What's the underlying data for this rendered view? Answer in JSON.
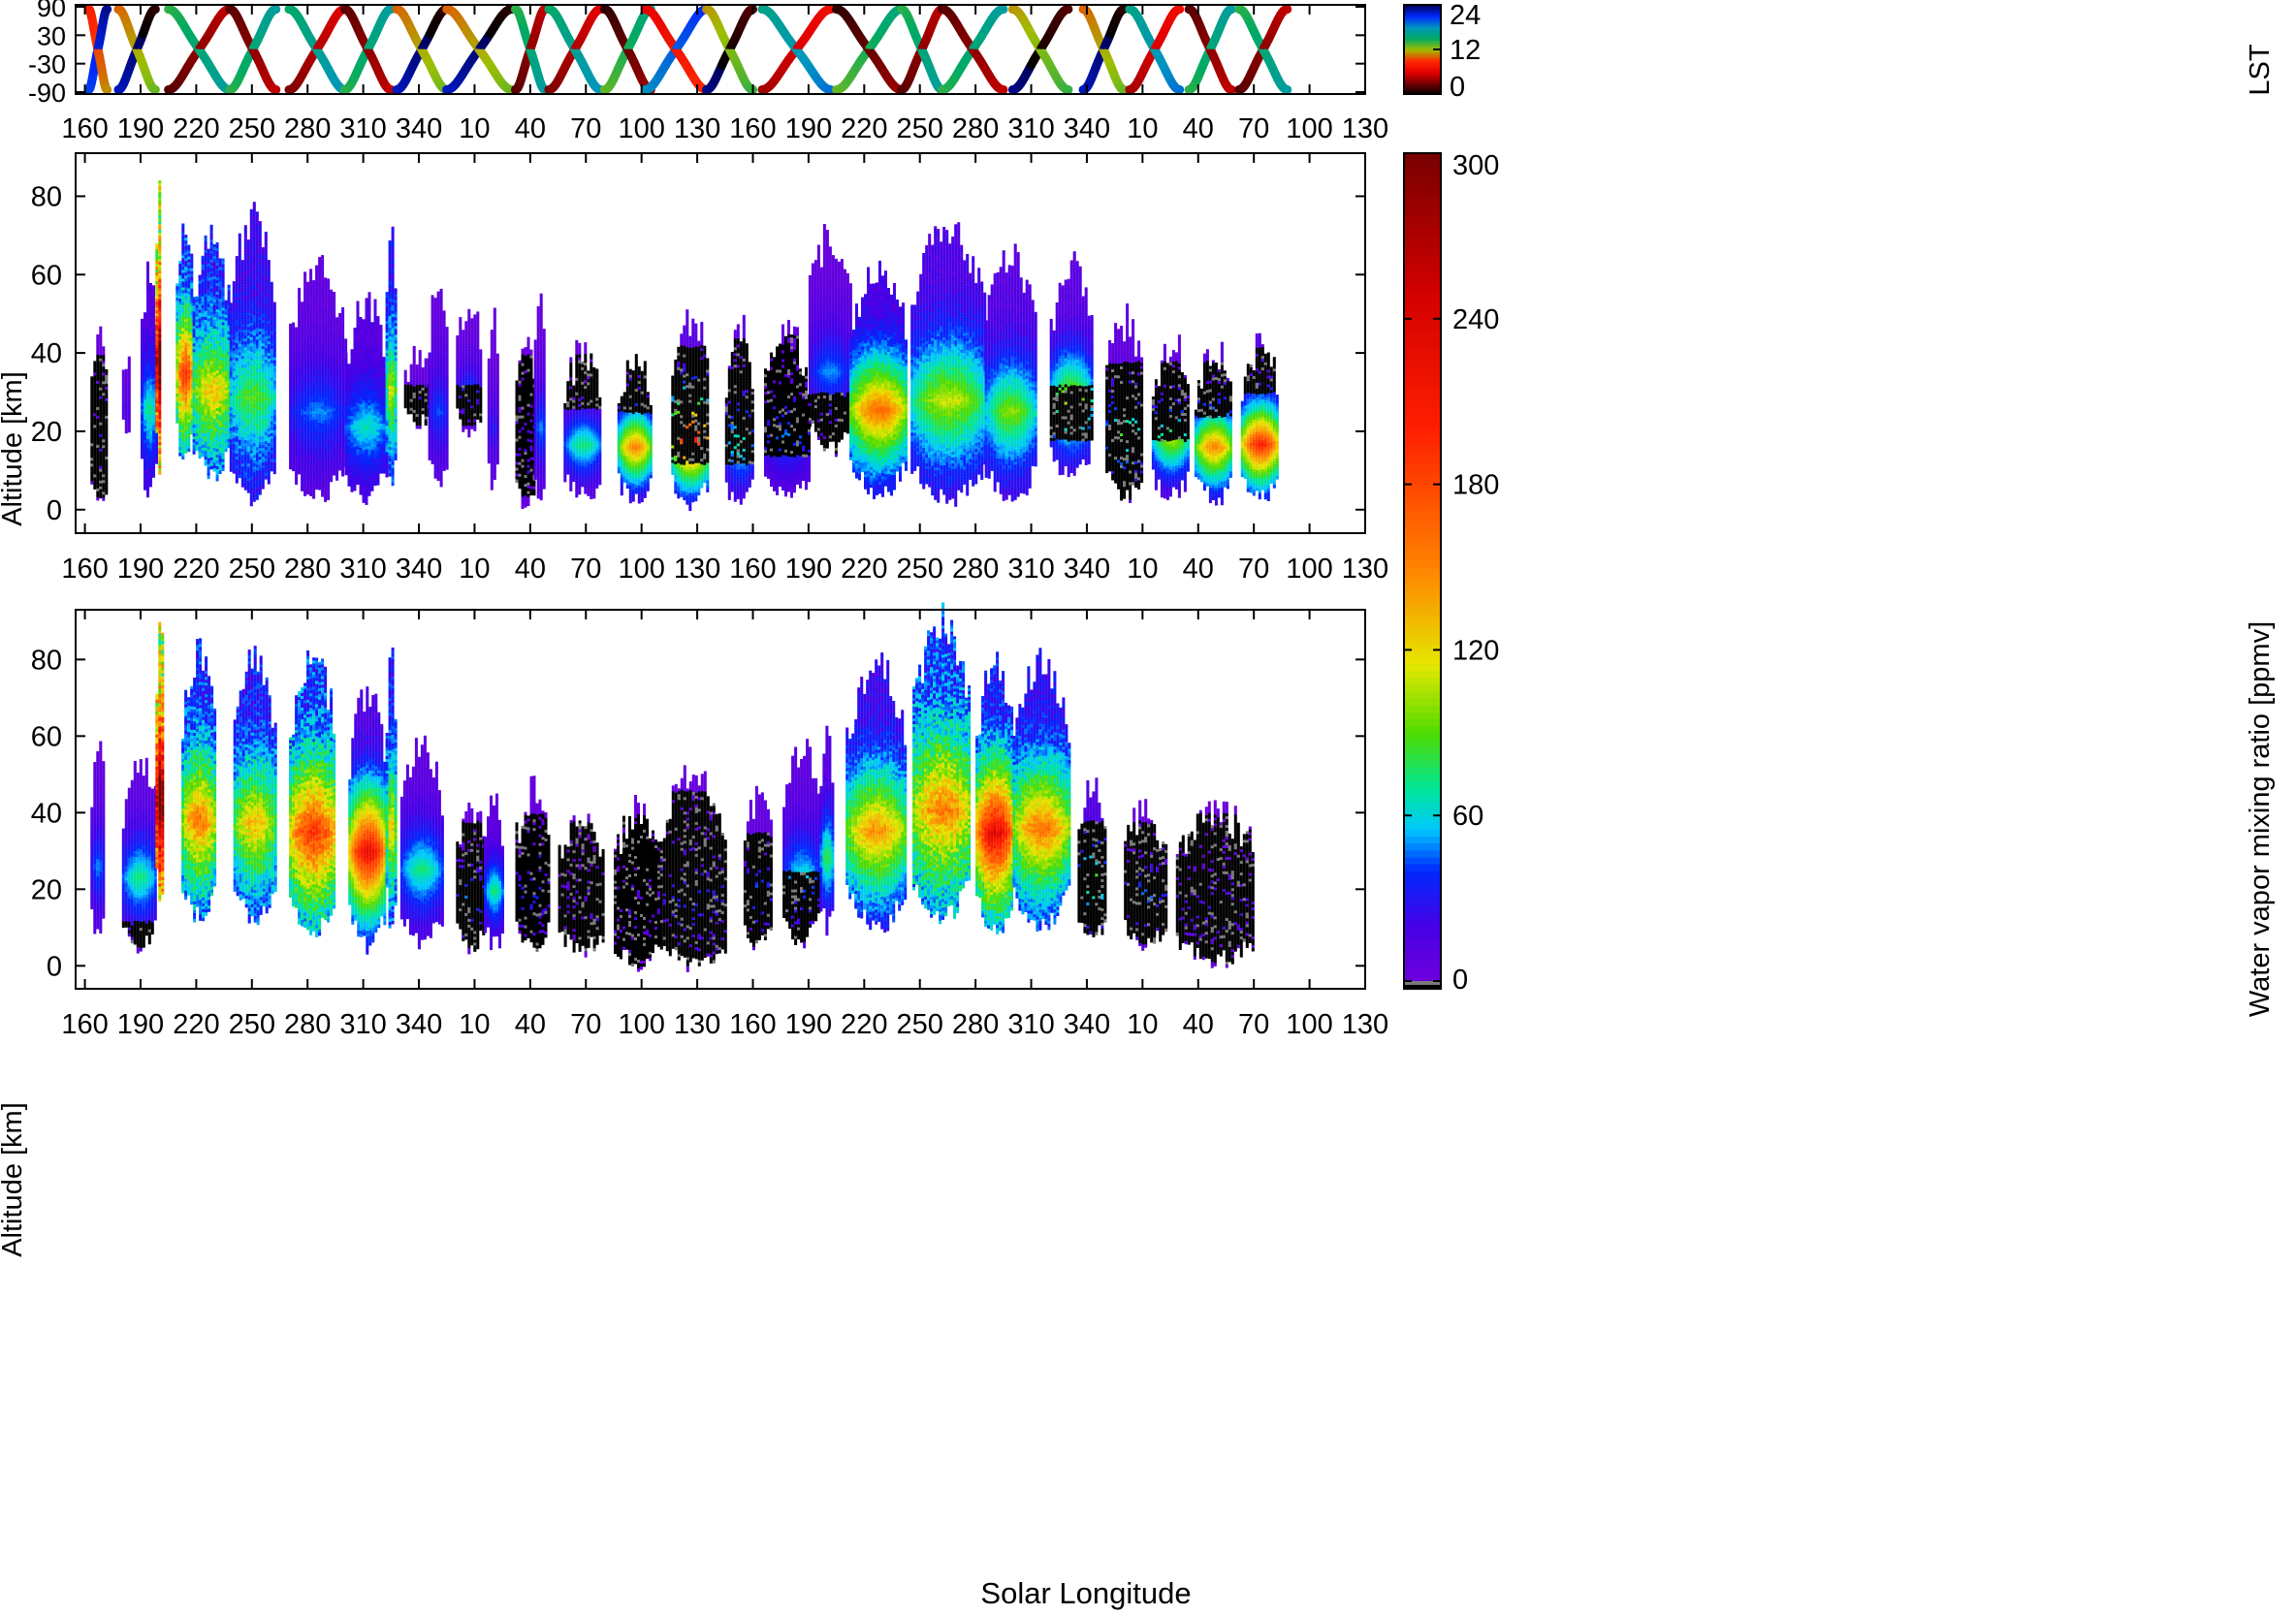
{
  "chart_data": [
    {
      "type": "scatter",
      "panel": "LST latitude track",
      "x_tick_labels": [
        "160",
        "190",
        "220",
        "250",
        "280",
        "310",
        "340",
        "10",
        "40",
        "70",
        "100",
        "130",
        "160",
        "190",
        "220",
        "250",
        "280",
        "310",
        "340",
        "10",
        "40",
        "70",
        "100",
        "130"
      ],
      "y_tick_labels": [
        "90",
        "30",
        "-30",
        "-90"
      ],
      "y_ticks": [
        90,
        30,
        -30,
        -90
      ],
      "ylim": [
        -90,
        90
      ],
      "colorbar": {
        "label": "LST",
        "range": [
          0,
          24
        ],
        "tick_labels": [
          "0",
          "12",
          "24"
        ],
        "ticks": [
          0,
          12,
          24
        ]
      },
      "observation_windows_ls": [
        [
          162,
          172
        ],
        [
          178,
          198
        ],
        [
          205,
          238
        ],
        [
          238,
          263
        ],
        [
          270,
          300
        ],
        [
          300,
          325
        ],
        [
          328,
          355
        ],
        [
          355,
          390
        ],
        [
          392,
          408
        ],
        [
          410,
          438
        ],
        [
          440,
          465
        ],
        [
          462,
          495
        ],
        [
          495,
          520
        ],
        [
          525,
          562
        ],
        [
          565,
          600
        ],
        [
          600,
          622
        ],
        [
          622,
          655
        ],
        [
          660,
          690
        ],
        [
          698,
          720
        ],
        [
          723,
          750
        ],
        [
          755,
          778
        ],
        [
          782,
          808
        ]
      ],
      "lst_start_hours": [
        20,
        22,
        2,
        14,
        3,
        14,
        22,
        22,
        2,
        3,
        13,
        18,
        23,
        4,
        13,
        2,
        14,
        23,
        22,
        4,
        14,
        2
      ]
    },
    {
      "type": "heatmap",
      "panel": "water vapor profiles, upper",
      "ylabel": "Altitude [km]",
      "x_tick_labels": [
        "160",
        "190",
        "220",
        "250",
        "280",
        "310",
        "340",
        "10",
        "40",
        "70",
        "100",
        "130",
        "160",
        "190",
        "220",
        "250",
        "280",
        "310",
        "340",
        "10",
        "40",
        "70",
        "100",
        "130"
      ],
      "y_tick_labels": [
        "0",
        "20",
        "40",
        "60",
        "80"
      ],
      "y_ticks": [
        0,
        20,
        40,
        60,
        80
      ],
      "ylim": [
        -6,
        91
      ],
      "columns": [
        {
          "ls": [
            163,
            172
          ],
          "alt": [
            2,
            44
          ],
          "core": 8,
          "peak": 20,
          "dry": [
            0,
            40
          ]
        },
        {
          "ls": [
            180,
            184
          ],
          "alt": [
            18,
            40
          ],
          "core": 14,
          "peak": 15
        },
        {
          "ls": [
            190,
            198
          ],
          "alt": [
            4,
            62
          ],
          "core": 30,
          "peak": 60
        },
        {
          "ls": [
            198,
            201
          ],
          "alt": [
            10,
            85
          ],
          "core": 250,
          "peak": 300
        },
        {
          "ls": [
            209,
            218
          ],
          "alt": [
            12,
            73
          ],
          "core": 95,
          "peak": 160
        },
        {
          "ls": [
            218,
            238
          ],
          "alt": [
            8,
            68
          ],
          "core": 85,
          "peak": 110
        },
        {
          "ls": [
            238,
            262
          ],
          "alt": [
            2,
            74
          ],
          "core": 55,
          "peak": 75
        },
        {
          "ls": [
            270,
            300
          ],
          "alt": [
            3,
            62
          ],
          "core": 18,
          "peak": 40
        },
        {
          "ls": [
            300,
            322
          ],
          "alt": [
            3,
            52
          ],
          "core": 30,
          "peak": 55
        },
        {
          "ls": [
            322,
            327
          ],
          "alt": [
            6,
            72
          ],
          "core": 70,
          "peak": 95
        },
        {
          "ls": [
            332,
            345
          ],
          "alt": [
            22,
            40
          ],
          "core": 10,
          "peak": 20,
          "dry": [
            22,
            32
          ]
        },
        {
          "ls": [
            345,
            355
          ],
          "alt": [
            6,
            58
          ],
          "core": 15,
          "peak": 35
        },
        {
          "ls": [
            360,
            373
          ],
          "alt": [
            20,
            52
          ],
          "core": 10,
          "peak": 30,
          "dry": [
            22,
            32
          ]
        },
        {
          "ls": [
            377,
            382
          ],
          "alt": [
            5,
            48
          ],
          "core": 8,
          "peak": 25
        },
        {
          "ls": [
            392,
            402
          ],
          "alt": [
            1,
            42
          ],
          "core": 5,
          "peak": 15,
          "dry": [
            4,
            40
          ]
        },
        {
          "ls": [
            402,
            408
          ],
          "alt": [
            2,
            53
          ],
          "core": 10,
          "peak": 40
        },
        {
          "ls": [
            418,
            438
          ],
          "alt": [
            3,
            40
          ],
          "core": 10,
          "peak": 60,
          "dry": [
            26,
            40
          ]
        },
        {
          "ls": [
            447,
            465
          ],
          "alt": [
            2,
            40
          ],
          "core": 20,
          "peak": 120,
          "dry": [
            25,
            40
          ]
        },
        {
          "ls": [
            476,
            496
          ],
          "alt": [
            1,
            48
          ],
          "core": 25,
          "peak": 170,
          "dry": [
            12,
            42
          ]
        },
        {
          "ls": [
            505,
            520
          ],
          "alt": [
            0,
            46
          ],
          "core": 20,
          "peak": 60,
          "dry": [
            12,
            44
          ]
        },
        {
          "ls": [
            526,
            550
          ],
          "alt": [
            3,
            45
          ],
          "core": 15,
          "peak": 40,
          "dry": [
            14,
            45
          ]
        },
        {
          "ls": [
            550,
            572
          ],
          "alt": [
            15,
            70
          ],
          "core": 10,
          "peak": 40,
          "dry": [
            15,
            30
          ]
        },
        {
          "ls": [
            572,
            603
          ],
          "alt": [
            4,
            62
          ],
          "core": 45,
          "peak": 130
        },
        {
          "ls": [
            605,
            645
          ],
          "alt": [
            2,
            72
          ],
          "core": 40,
          "peak": 90
        },
        {
          "ls": [
            645,
            672
          ],
          "alt": [
            2,
            64
          ],
          "core": 30,
          "peak": 80
        },
        {
          "ls": [
            680,
            702
          ],
          "alt": [
            8,
            62
          ],
          "core": 25,
          "peak": 90,
          "dry": [
            18,
            32
          ]
        },
        {
          "ls": [
            710,
            730
          ],
          "alt": [
            3,
            48
          ],
          "core": 15,
          "peak": 70,
          "dry": [
            3,
            38
          ]
        },
        {
          "ls": [
            735,
            755
          ],
          "alt": [
            3,
            42
          ],
          "core": 15,
          "peak": 80,
          "dry": [
            18,
            38
          ]
        },
        {
          "ls": [
            758,
            778
          ],
          "alt": [
            2,
            40
          ],
          "core": 30,
          "peak": 120,
          "dry": [
            24,
            38
          ]
        },
        {
          "ls": [
            783,
            803
          ],
          "alt": [
            2,
            42
          ],
          "core": 30,
          "peak": 160,
          "dry": [
            30,
            42
          ]
        }
      ]
    },
    {
      "type": "heatmap",
      "panel": "water vapor profiles, lower",
      "xlabel": "Solar Longitude",
      "ylabel": "Altitude [km]",
      "x_tick_labels": [
        "160",
        "190",
        "220",
        "250",
        "280",
        "310",
        "340",
        "10",
        "40",
        "70",
        "100",
        "130",
        "160",
        "190",
        "220",
        "250",
        "280",
        "310",
        "340",
        "10",
        "40",
        "70",
        "100",
        "130"
      ],
      "y_tick_labels": [
        "0",
        "20",
        "40",
        "60",
        "80"
      ],
      "y_ticks": [
        0,
        20,
        40,
        60,
        80
      ],
      "ylim": [
        -6,
        93
      ],
      "columns": [
        {
          "ls": [
            163,
            170
          ],
          "alt": [
            7,
            58
          ],
          "core": 15,
          "peak": 40
        },
        {
          "ls": [
            180,
            198
          ],
          "alt": [
            5,
            54
          ],
          "core": 20,
          "peak": 60,
          "dry": [
            5,
            12
          ]
        },
        {
          "ls": [
            198,
            202
          ],
          "alt": [
            15,
            92
          ],
          "core": 260,
          "peak": 300
        },
        {
          "ls": [
            212,
            230
          ],
          "alt": [
            12,
            82
          ],
          "core": 90,
          "peak": 130
        },
        {
          "ls": [
            240,
            262
          ],
          "alt": [
            12,
            80
          ],
          "core": 80,
          "peak": 110
        },
        {
          "ls": [
            270,
            295
          ],
          "alt": [
            8,
            80
          ],
          "core": 100,
          "peak": 160
        },
        {
          "ls": [
            302,
            322
          ],
          "alt": [
            5,
            72
          ],
          "core": 40,
          "peak": 180
        },
        {
          "ls": [
            322,
            327
          ],
          "alt": [
            10,
            80
          ],
          "core": 80,
          "peak": 110
        },
        {
          "ls": [
            330,
            352
          ],
          "alt": [
            6,
            58
          ],
          "core": 20,
          "peak": 60
        },
        {
          "ls": [
            360,
            375
          ],
          "alt": [
            4,
            42
          ],
          "core": 10,
          "peak": 40,
          "dry": [
            4,
            38
          ]
        },
        {
          "ls": [
            375,
            385
          ],
          "alt": [
            5,
            45
          ],
          "core": 15,
          "peak": 60
        },
        {
          "ls": [
            392,
            410
          ],
          "alt": [
            4,
            45
          ],
          "core": 10,
          "peak": 30,
          "dry": [
            4,
            40
          ]
        },
        {
          "ls": [
            415,
            440
          ],
          "alt": [
            4,
            38
          ],
          "core": 5,
          "peak": 15,
          "dry": [
            4,
            38
          ]
        },
        {
          "ls": [
            445,
            470
          ],
          "alt": [
            0,
            40
          ],
          "core": 5,
          "peak": 15,
          "dry": [
            0,
            40
          ]
        },
        {
          "ls": [
            470,
            505
          ],
          "alt": [
            -1,
            50
          ],
          "core": 10,
          "peak": 30,
          "dry": [
            0,
            46
          ]
        },
        {
          "ls": [
            515,
            530
          ],
          "alt": [
            5,
            43
          ],
          "core": 15,
          "peak": 40,
          "dry": [
            5,
            35
          ]
        },
        {
          "ls": [
            536,
            556
          ],
          "alt": [
            6,
            56
          ],
          "core": 20,
          "peak": 50,
          "dry": [
            6,
            25
          ]
        },
        {
          "ls": [
            556,
            563
          ],
          "alt": [
            10,
            60
          ],
          "core": 30,
          "peak": 70
        },
        {
          "ls": [
            570,
            602
          ],
          "alt": [
            10,
            78
          ],
          "core": 60,
          "peak": 120
        },
        {
          "ls": [
            606,
            637
          ],
          "alt": [
            12,
            90
          ],
          "core": 100,
          "peak": 130
        },
        {
          "ls": [
            640,
            660
          ],
          "alt": [
            8,
            80
          ],
          "core": 80,
          "peak": 190
        },
        {
          "ls": [
            660,
            690
          ],
          "alt": [
            10,
            80
          ],
          "core": 70,
          "peak": 130
        },
        {
          "ls": [
            695,
            710
          ],
          "alt": [
            7,
            48
          ],
          "core": 30,
          "peak": 80,
          "dry": [
            7,
            38
          ]
        },
        {
          "ls": [
            720,
            742
          ],
          "alt": [
            6,
            40
          ],
          "core": 10,
          "peak": 40,
          "dry": [
            6,
            38
          ]
        },
        {
          "ls": [
            748,
            790
          ],
          "alt": [
            1,
            40
          ],
          "core": 5,
          "peak": 20,
          "dry": [
            1,
            40
          ]
        }
      ]
    }
  ],
  "colorbar": {
    "label": "Water vapor mixing ratio [ppmv]",
    "range": [
      0,
      300
    ],
    "tick_labels": [
      "0",
      "60",
      "120",
      "180",
      "240",
      "300"
    ],
    "ticks": [
      0,
      60,
      120,
      180,
      240,
      300
    ]
  }
}
